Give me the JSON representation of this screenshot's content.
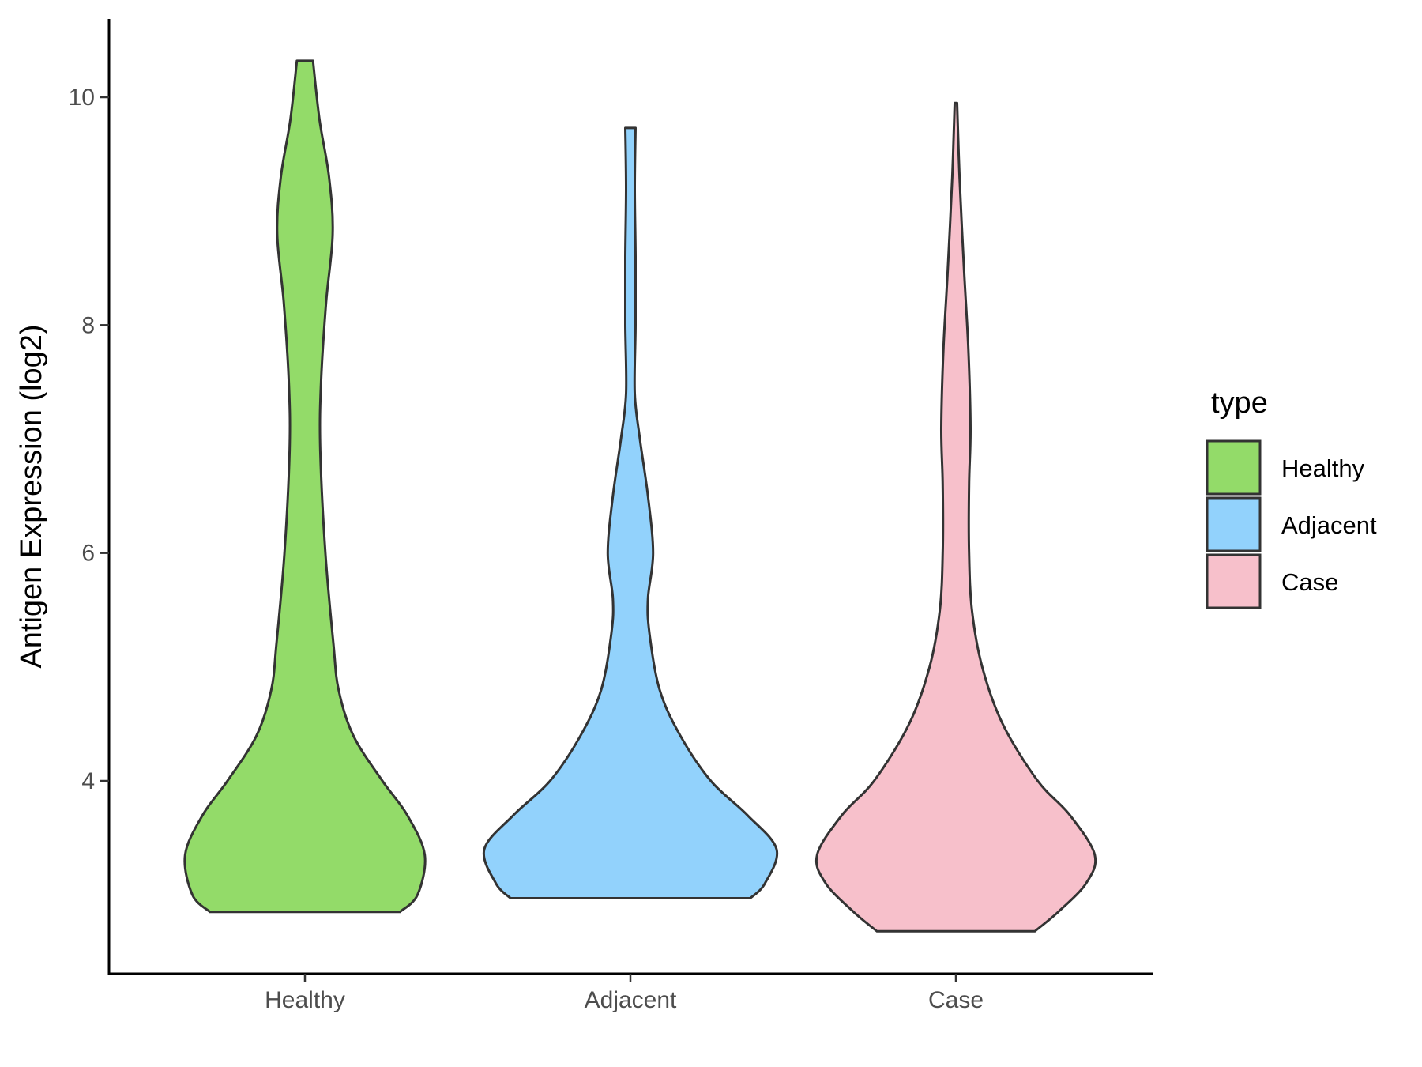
{
  "chart_data": {
    "type": "violin",
    "title": "",
    "xlabel": "",
    "ylabel": "Antigen Expression (log2)",
    "ylim": [
      2.2,
      10.7
    ],
    "yticks": [
      4,
      6,
      8,
      10
    ],
    "ytick_labels": [
      "4",
      "6",
      "8",
      "10"
    ],
    "categories": [
      "Healthy",
      "Adjacent",
      "Case"
    ],
    "legend": {
      "title": "type",
      "placement": "right",
      "entries": [
        "Healthy",
        "Adjacent",
        "Case"
      ]
    },
    "grid": false,
    "series": [
      {
        "name": "Healthy",
        "color": "#93DB69",
        "min": 2.85,
        "max": 10.32,
        "profile": [
          [
            2.85,
            0.65
          ],
          [
            3.0,
            0.77
          ],
          [
            3.35,
            0.82
          ],
          [
            3.7,
            0.7
          ],
          [
            4.0,
            0.53
          ],
          [
            4.4,
            0.33
          ],
          [
            4.8,
            0.23
          ],
          [
            5.2,
            0.195
          ],
          [
            6.0,
            0.14
          ],
          [
            6.9,
            0.105
          ],
          [
            7.5,
            0.11
          ],
          [
            8.2,
            0.145
          ],
          [
            8.8,
            0.19
          ],
          [
            9.3,
            0.165
          ],
          [
            9.8,
            0.1
          ],
          [
            10.32,
            0.055
          ]
        ]
      },
      {
        "name": "Adjacent",
        "color": "#92D2FC",
        "min": 2.97,
        "max": 9.73,
        "profile": [
          [
            2.97,
            0.82
          ],
          [
            3.1,
            0.92
          ],
          [
            3.4,
            1.0
          ],
          [
            3.7,
            0.8
          ],
          [
            4.0,
            0.55
          ],
          [
            4.4,
            0.34
          ],
          [
            4.8,
            0.2
          ],
          [
            5.3,
            0.13
          ],
          [
            5.6,
            0.12
          ],
          [
            6.0,
            0.155
          ],
          [
            6.5,
            0.12
          ],
          [
            7.0,
            0.065
          ],
          [
            7.4,
            0.03
          ],
          [
            8.0,
            0.035
          ],
          [
            8.6,
            0.035
          ],
          [
            9.2,
            0.03
          ],
          [
            9.73,
            0.035
          ]
        ]
      },
      {
        "name": "Case",
        "color": "#F7C0CB",
        "min": 2.68,
        "max": 9.95,
        "profile": [
          [
            2.68,
            0.54
          ],
          [
            2.85,
            0.7
          ],
          [
            3.1,
            0.89
          ],
          [
            3.35,
            0.95
          ],
          [
            3.7,
            0.78
          ],
          [
            4.0,
            0.56
          ],
          [
            4.5,
            0.32
          ],
          [
            5.0,
            0.18
          ],
          [
            5.5,
            0.11
          ],
          [
            6.0,
            0.09
          ],
          [
            6.6,
            0.09
          ],
          [
            7.1,
            0.1
          ],
          [
            7.8,
            0.085
          ],
          [
            8.5,
            0.055
          ],
          [
            9.3,
            0.025
          ],
          [
            9.95,
            0.008
          ]
        ]
      }
    ]
  }
}
